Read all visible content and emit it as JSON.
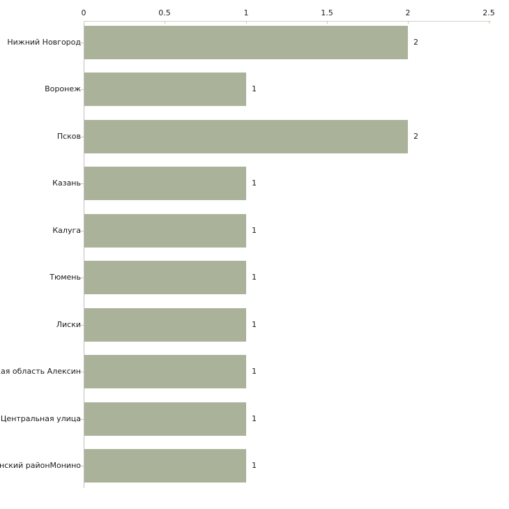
{
  "chart_data": {
    "type": "bar",
    "orientation": "horizontal",
    "title": "",
    "xlabel": "",
    "ylabel": "",
    "categories": [
      "Нижний Новгород",
      "Воронеж",
      "Псков",
      "Казань",
      "Калуга",
      "Тюмень",
      "Лиски",
      "ская область Алексин",
      "о Центральная улица",
      "инский районМонино"
    ],
    "values": [
      2,
      1,
      2,
      1,
      1,
      1,
      1,
      1,
      1,
      1
    ],
    "value_labels": [
      "2",
      "1",
      "2",
      "1",
      "1",
      "1",
      "1",
      "1",
      "1",
      "1"
    ],
    "xlim": [
      0,
      2.5
    ],
    "x_ticks": [
      0,
      0.5,
      1,
      1.5,
      2,
      2.5
    ],
    "x_tick_labels": [
      "0",
      "0.5",
      "1",
      "1.5",
      "2",
      "2.5"
    ],
    "grid": false,
    "legend": false,
    "colors": {
      "bar_fill": "#abb29a",
      "axis_line_h": "#d0d0c9",
      "axis_line_v": "#bdbdbd",
      "tick_mark": "#cbcb9b",
      "text": "#1a1a1a"
    }
  }
}
